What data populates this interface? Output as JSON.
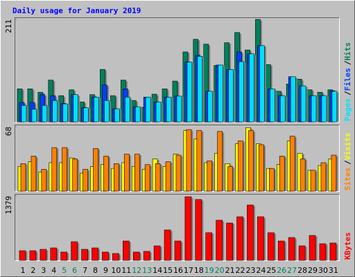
{
  "chart_data": {
    "type": "bar",
    "title": "Daily usage for January 2019",
    "categories": [
      "1",
      "2",
      "3",
      "4",
      "5",
      "6",
      "7",
      "8",
      "9",
      "10",
      "11",
      "12",
      "13",
      "14",
      "15",
      "16",
      "17",
      "18",
      "19",
      "20",
      "21",
      "22",
      "23",
      "24",
      "25",
      "26",
      "27",
      "28",
      "29",
      "30",
      "31"
    ],
    "category_colors": [
      "#000000",
      "#000000",
      "#000000",
      "#000000",
      "#00805c",
      "#00805c",
      "#000000",
      "#000000",
      "#000000",
      "#000000",
      "#000000",
      "#00805c",
      "#00805c",
      "#000000",
      "#000000",
      "#000000",
      "#000000",
      "#000000",
      "#00805c",
      "#00805c",
      "#000000",
      "#000000",
      "#000000",
      "#000000",
      "#000000",
      "#00805c",
      "#00805c",
      "#000000",
      "#000000",
      "#000000",
      "#000000"
    ],
    "legend_separator": "/",
    "panels": [
      {
        "ylim": [
          0,
          211
        ],
        "yticks": [
          211
        ],
        "series": [
          {
            "name": "Hits",
            "color": "#00805c",
            "values": [
              68,
              68,
              61,
              86,
              54,
              66,
              41,
              56,
              108,
              54,
              86,
              44,
              30,
              57,
              68,
              84,
              144,
              170,
              160,
              116,
              163,
              184,
              148,
              211,
              118,
              63,
              78,
              88,
              66,
              61,
              66
            ]
          },
          {
            "name": "Files",
            "color": "#0040ff",
            "values": [
              40,
              40,
              56,
              54,
              38,
              56,
              29,
              51,
              76,
              27,
              68,
              31,
              51,
              41,
              51,
              53,
              123,
              137,
              63,
              117,
              108,
              144,
              140,
              157,
              68,
              54,
              93,
              74,
              54,
              54,
              64
            ]
          },
          {
            "name": "Pages",
            "color": "#00e0ff",
            "values": [
              34,
              26,
              34,
              44,
              37,
              56,
              29,
              51,
              44,
              27,
              51,
              31,
              51,
              41,
              51,
              53,
              123,
              135,
              63,
              117,
              108,
              124,
              140,
              157,
              68,
              54,
              93,
              74,
              54,
              54,
              63
            ]
          }
        ]
      },
      {
        "ylim": [
          0,
          68
        ],
        "yticks": [
          68
        ],
        "series": [
          {
            "name": "Visits",
            "color": "#ffff00",
            "values": [
              26,
              31,
              20,
              30,
              30,
              35,
              19,
              26,
              28,
              24,
              30,
              26,
              23,
              34,
              26,
              39,
              64,
              55,
              30,
              40,
              29,
              50,
              67,
              50,
              24,
              28,
              53,
              40,
              22,
              27,
              34
            ]
          },
          {
            "name": "Sites",
            "color": "#ff8000",
            "values": [
              29,
              37,
              23,
              46,
              46,
              34,
              23,
              45,
              37,
              29,
              39,
              39,
              28,
              29,
              31,
              38,
              65,
              64,
              32,
              63,
              26,
              53,
              64,
              49,
              24,
              37,
              58,
              34,
              22,
              30,
              38
            ]
          }
        ]
      },
      {
        "ylim": [
          0,
          1379
        ],
        "yticks": [
          1379
        ],
        "series": [
          {
            "name": "KBytes",
            "color": "#ff0000",
            "values": [
              207,
              207,
              237,
              267,
              178,
              400,
              237,
              267,
              178,
              148,
              415,
              178,
              193,
              311,
              652,
              415,
              1363,
              1304,
              593,
              860,
              800,
              934,
              1186,
              934,
              593,
              415,
              489,
              311,
              534,
              356,
              371
            ]
          }
        ]
      }
    ]
  }
}
